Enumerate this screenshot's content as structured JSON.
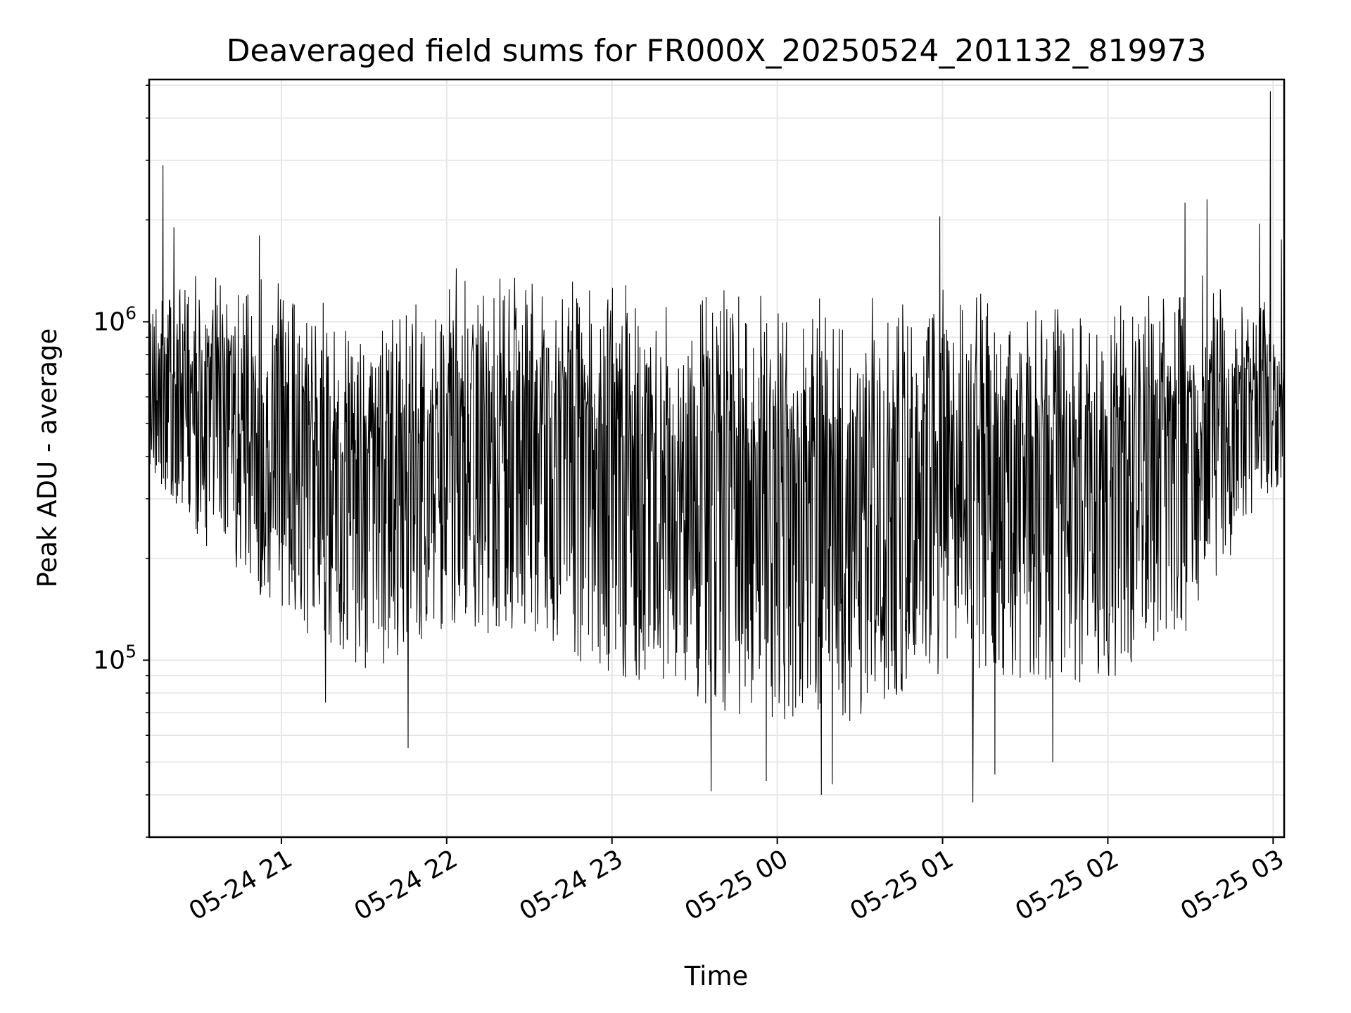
{
  "chart_data": {
    "type": "line",
    "title": "Deaveraged field sums for FR000X_20250524_201132_819973",
    "xlabel": "Time",
    "ylabel": "Peak ADU - average",
    "yscale": "log",
    "grid": true,
    "legend": "none",
    "line_color": "#000000",
    "grid_color": "#e6e6e6",
    "xlim": [
      "2025-05-24 20:12",
      "2025-05-25 03:04"
    ],
    "ylim": [
      30000,
      5200000
    ],
    "x_ticks": [
      {
        "value": "2025-05-24 21:00",
        "label": "05-24 21"
      },
      {
        "value": "2025-05-24 22:00",
        "label": "05-24 22"
      },
      {
        "value": "2025-05-24 23:00",
        "label": "05-24 23"
      },
      {
        "value": "2025-05-25 00:00",
        "label": "05-25 00"
      },
      {
        "value": "2025-05-25 01:00",
        "label": "05-25 01"
      },
      {
        "value": "2025-05-25 02:00",
        "label": "05-25 02"
      },
      {
        "value": "2025-05-25 03:00",
        "label": "05-25 03"
      }
    ],
    "y_ticks": [
      {
        "value": 100000,
        "base": "10",
        "exp": "5"
      },
      {
        "value": 1000000,
        "base": "10",
        "exp": "6"
      }
    ],
    "envelope": {
      "times": [
        "2025-05-24 20:12",
        "2025-05-24 20:30",
        "2025-05-24 21:00",
        "2025-05-24 21:30",
        "2025-05-24 22:00",
        "2025-05-24 22:30",
        "2025-05-24 23:00",
        "2025-05-24 23:30",
        "2025-05-25 00:00",
        "2025-05-25 00:30",
        "2025-05-25 01:00",
        "2025-05-25 01:30",
        "2025-05-25 02:00",
        "2025-05-25 02:30",
        "2025-05-25 03:00",
        "2025-05-25 03:04"
      ],
      "upper": [
        1100000,
        1200000,
        1250000,
        850000,
        1250000,
        1250000,
        1150000,
        1150000,
        1000000,
        1000000,
        1100000,
        1000000,
        1000000,
        1300000,
        1000000,
        700000
      ],
      "lower": [
        350000,
        200000,
        120000,
        80000,
        110000,
        100000,
        80000,
        65000,
        55000,
        55000,
        80000,
        75000,
        75000,
        110000,
        300000,
        300000
      ]
    },
    "spikes": [
      {
        "time": "2025-05-24 20:17",
        "value": 2900000
      },
      {
        "time": "2025-05-24 20:21",
        "value": 1900000
      },
      {
        "time": "2025-05-24 20:52",
        "value": 1800000
      },
      {
        "time": "2025-05-25 00:59",
        "value": 2050000
      },
      {
        "time": "2025-05-25 02:28",
        "value": 2250000
      },
      {
        "time": "2025-05-25 02:36",
        "value": 2300000
      },
      {
        "time": "2025-05-25 02:55",
        "value": 1950000
      },
      {
        "time": "2025-05-25 02:59",
        "value": 4800000
      },
      {
        "time": "2025-05-25 03:03",
        "value": 1750000
      }
    ],
    "dips": [
      {
        "time": "2025-05-24 21:16",
        "value": 75000
      },
      {
        "time": "2025-05-24 21:46",
        "value": 55000
      },
      {
        "time": "2025-05-24 23:36",
        "value": 41000
      },
      {
        "time": "2025-05-24 23:56",
        "value": 44000
      },
      {
        "time": "2025-05-25 00:16",
        "value": 40000
      },
      {
        "time": "2025-05-25 00:20",
        "value": 43000
      },
      {
        "time": "2025-05-25 01:11",
        "value": 38000
      },
      {
        "time": "2025-05-25 01:19",
        "value": 46000
      },
      {
        "time": "2025-05-25 01:40",
        "value": 50000
      }
    ],
    "sample_interval_seconds": 10
  }
}
